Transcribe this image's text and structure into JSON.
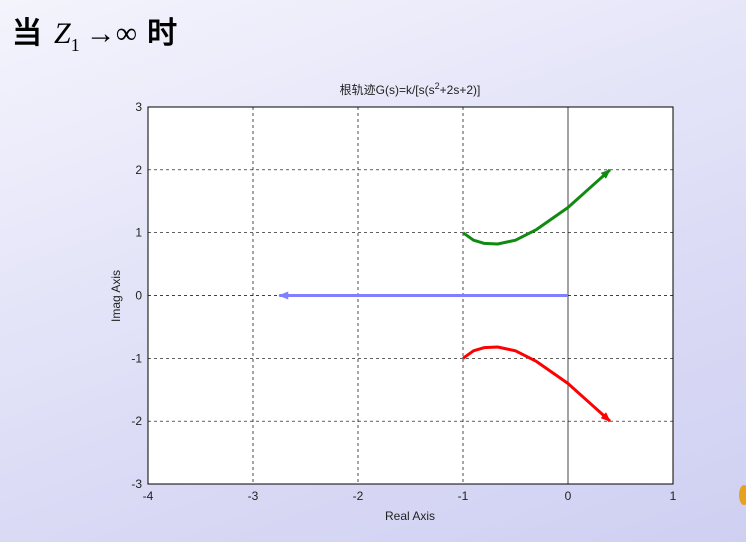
{
  "heading": {
    "text_before": "当",
    "symbol": "Z",
    "subscript": "1",
    "relation": "→∞",
    "text_after": "时"
  },
  "chart_data": {
    "type": "line",
    "title": [
      "根轨迹G(s)=k/[s(s",
      "2",
      "+2s+2)]"
    ],
    "xlabel": "Real Axis",
    "ylabel": "Imag Axis",
    "xlim": [
      -4,
      1
    ],
    "ylim": [
      -3,
      3
    ],
    "xticks": [
      -4,
      -3,
      -2,
      -1,
      0,
      1
    ],
    "yticks": [
      -3,
      -2,
      -1,
      0,
      1,
      2,
      3
    ],
    "grid": true,
    "series": [
      {
        "color": "#108a10",
        "x": [
          -1,
          -0.9,
          -0.8,
          -0.67,
          -0.5,
          -0.3,
          0,
          0.2,
          0.4
        ],
        "values": [
          1,
          0.88,
          0.83,
          0.82,
          0.88,
          1.05,
          1.4,
          1.7,
          2
        ]
      },
      {
        "color": "#ff0000",
        "x": [
          -1,
          -0.9,
          -0.8,
          -0.67,
          -0.5,
          -0.3,
          0,
          0.2,
          0.4
        ],
        "values": [
          -1,
          -0.88,
          -0.83,
          -0.82,
          -0.88,
          -1.05,
          -1.4,
          -1.7,
          -2
        ]
      },
      {
        "color": "#8080ff",
        "x": [
          0,
          -2.75
        ],
        "values": [
          0,
          0
        ]
      }
    ]
  }
}
